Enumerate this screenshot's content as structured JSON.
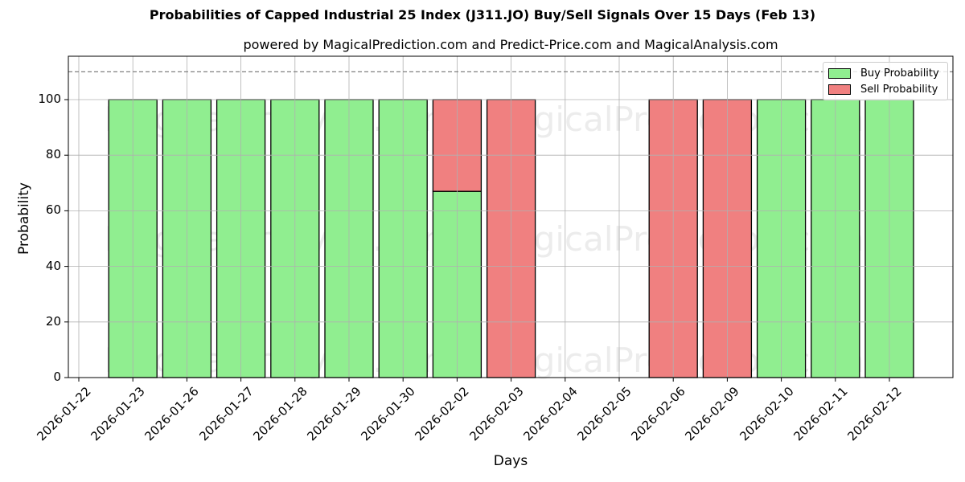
{
  "chart_data": {
    "type": "bar",
    "stacked": true,
    "title": "Probabilities of Capped Industrial 25 Index (J311.JO) Buy/Sell Signals Over 15 Days (Feb 13)",
    "subtitle": "powered by MagicalPrediction.com and Predict-Price.com and MagicalAnalysis.com",
    "xlabel": "Days",
    "ylabel": "Probability",
    "ylim": [
      0,
      115
    ],
    "yticks": [
      0,
      20,
      40,
      60,
      80,
      100
    ],
    "grid": true,
    "reference_line": {
      "y": 110,
      "style": "dashed",
      "color": "#808080"
    },
    "legend_position": "upper right",
    "categories": [
      "2026-01-22",
      "2026-01-23",
      "2026-01-26",
      "2026-01-27",
      "2026-01-28",
      "2026-01-29",
      "2026-01-30",
      "2026-02-02",
      "2026-02-03",
      "2026-02-04",
      "2026-02-05",
      "2026-02-06",
      "2026-02-09",
      "2026-02-10",
      "2026-02-11",
      "2026-02-12"
    ],
    "series": [
      {
        "name": "Buy Probability",
        "color": "#90ee90",
        "values": [
          0,
          100,
          100,
          100,
          100,
          100,
          100,
          67,
          0,
          0,
          0,
          0,
          0,
          100,
          100,
          100
        ]
      },
      {
        "name": "Sell Probability",
        "color": "#f08080",
        "values": [
          0,
          0,
          0,
          0,
          0,
          0,
          0,
          33,
          100,
          0,
          0,
          100,
          100,
          0,
          0,
          0
        ]
      }
    ],
    "watermarks": [
      "MagicalAnalysis.com",
      "MagicalPrediction.com"
    ]
  }
}
